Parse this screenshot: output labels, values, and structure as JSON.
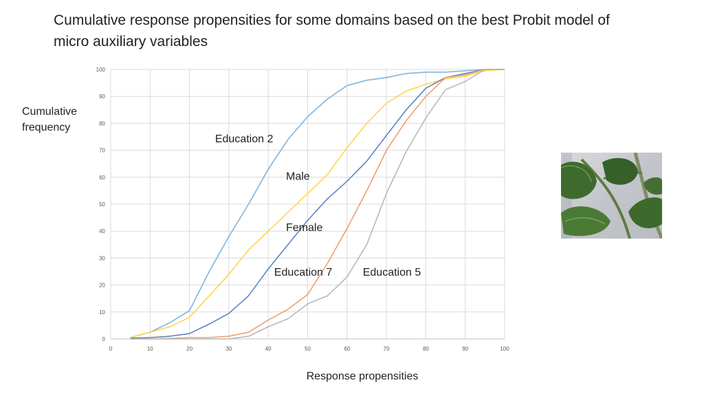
{
  "slide": {
    "title": "Cumulative response propensities for some domains based on the best Probit model of micro auxiliary variables"
  },
  "photo": {
    "description": "leafy-plant-icon"
  },
  "chart_data": {
    "type": "line",
    "title": "",
    "xlabel": "Response propensities",
    "ylabel": "Cumulative frequency",
    "xlim": [
      0,
      100
    ],
    "ylim": [
      0,
      100
    ],
    "xticks": [
      0,
      10,
      20,
      30,
      40,
      50,
      60,
      70,
      80,
      90,
      100
    ],
    "yticks": [
      0,
      10,
      20,
      30,
      40,
      50,
      60,
      70,
      80,
      90,
      100
    ],
    "grid": true,
    "x": [
      5,
      10,
      15,
      20,
      25,
      30,
      35,
      40,
      45,
      50,
      55,
      60,
      65,
      70,
      75,
      80,
      85,
      90,
      95,
      100
    ],
    "series": [
      {
        "name": "Education 2",
        "color": "#7eb4de",
        "values": [
          0.5,
          2.5,
          6,
          10.5,
          25,
          38,
          50,
          63,
          74,
          82.5,
          89,
          94,
          96,
          97,
          98.5,
          99,
          99,
          99.5,
          100,
          100
        ]
      },
      {
        "name": "Male",
        "color": "#ffd54a",
        "values": [
          0.5,
          2.5,
          4.5,
          8,
          16,
          24,
          33,
          40,
          47,
          54,
          61,
          71,
          80,
          87.5,
          92,
          94.5,
          96.5,
          97.5,
          99.5,
          100
        ]
      },
      {
        "name": "Female",
        "color": "#5b84c4",
        "values": [
          0.3,
          0.5,
          1,
          2,
          5.5,
          9.5,
          16,
          26,
          35,
          44,
          52,
          58.5,
          66,
          75.5,
          85,
          93,
          97,
          98.5,
          100,
          100
        ]
      },
      {
        "name": "Education 7",
        "color": "#f0a070",
        "values": [
          0,
          0,
          0.2,
          0.5,
          0.5,
          1,
          2.5,
          7,
          11,
          16.5,
          28,
          41,
          55,
          70,
          81,
          90,
          97,
          98,
          100,
          100
        ]
      },
      {
        "name": "Education 5",
        "color": "#b8b8b8",
        "values": [
          0,
          0,
          0,
          0,
          0,
          0,
          1,
          4.5,
          7.5,
          13,
          16,
          23,
          35,
          54,
          69.5,
          82,
          92.5,
          95.5,
          100,
          100
        ]
      }
    ],
    "annotations": [
      {
        "text": "Education 2",
        "x": 26.5,
        "y": 73
      },
      {
        "text": "Male",
        "x": 44.5,
        "y": 59
      },
      {
        "text": "Female",
        "x": 44.5,
        "y": 40
      },
      {
        "text": "Education 7",
        "x": 41.5,
        "y": 23.5
      },
      {
        "text": "Education 5",
        "x": 64,
        "y": 23.5
      }
    ]
  }
}
